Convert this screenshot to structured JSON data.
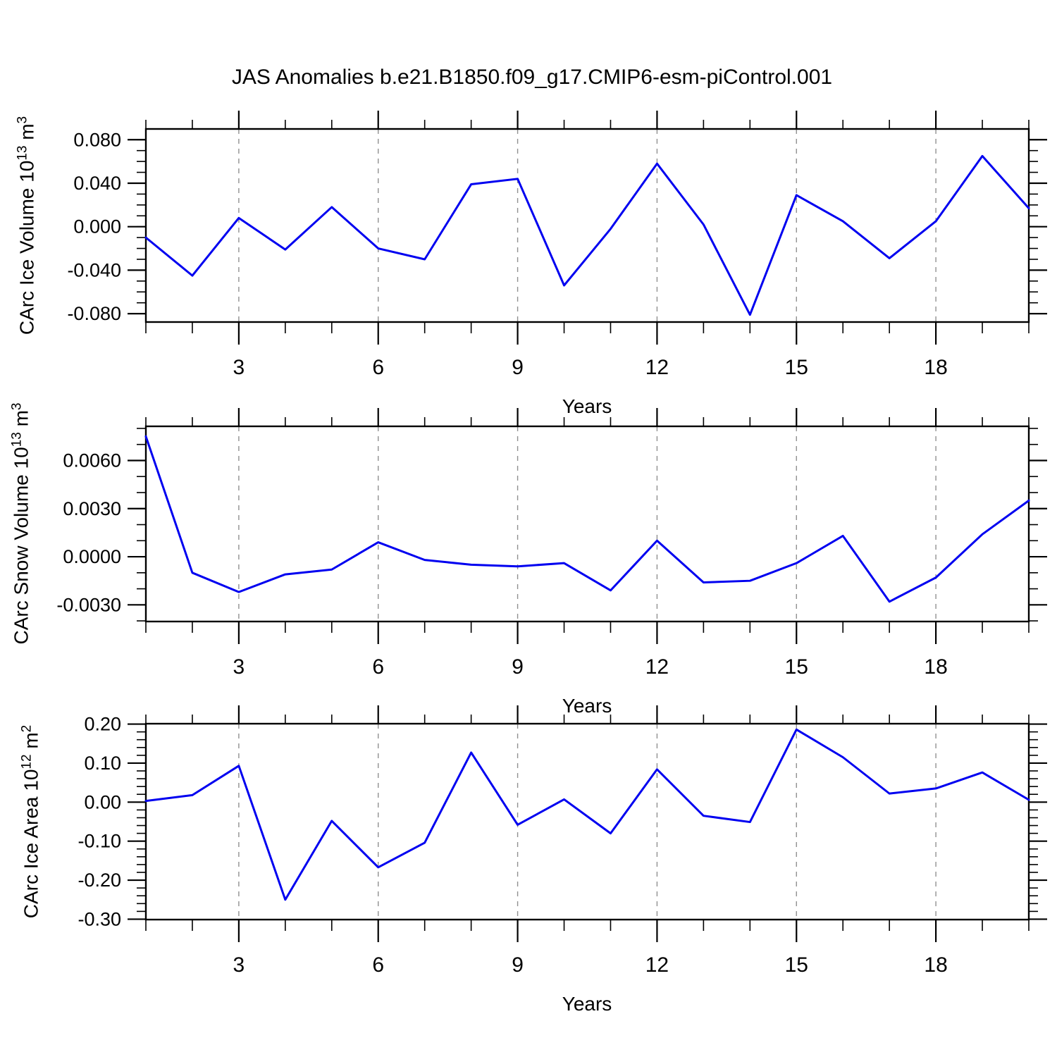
{
  "title": "JAS Anomalies b.e21.B1850.f09_g17.CMIP6-esm-piControl.001",
  "colors": {
    "line": "#0000f0",
    "grid": "#909090",
    "axis": "#000000"
  },
  "chart_data": [
    {
      "id": "ice-volume",
      "type": "line",
      "ylabel": "CArc Ice Volume 10^13 m^3",
      "ylabel_parts": {
        "base": "CArc Ice Volume 10",
        "sup1": "13",
        "mid": " m",
        "sup2": "3"
      },
      "xlabel": "Years",
      "x": [
        1,
        2,
        3,
        4,
        5,
        6,
        7,
        8,
        9,
        10,
        11,
        12,
        13,
        14,
        15,
        16,
        17,
        18,
        19,
        20
      ],
      "values": [
        -0.01,
        -0.045,
        0.008,
        -0.021,
        0.018,
        -0.02,
        -0.03,
        0.039,
        0.044,
        -0.054,
        -0.002,
        0.058,
        0.002,
        -0.081,
        0.029,
        0.005,
        -0.029,
        0.005,
        0.065,
        0.017
      ],
      "xlim": [
        1,
        20
      ],
      "ylim": [
        -0.0877,
        0.0899
      ],
      "xtick_major": [
        3,
        6,
        9,
        12,
        15,
        18
      ],
      "xtick_labels": [
        "3",
        "6",
        "9",
        "12",
        "15",
        "18"
      ],
      "ytick_values": [
        0.08,
        0.04,
        0.0,
        -0.04,
        -0.08
      ],
      "ytick_labels": [
        "0.080",
        "0.040",
        "0.000",
        "-0.040",
        "-0.080"
      ],
      "ytick_minor_step": 0.01,
      "grid": "dashed-vertical-at-major-xticks",
      "legend": "none"
    },
    {
      "id": "snow-volume",
      "type": "line",
      "ylabel": "CArc Snow Volume 10^13 m^3",
      "ylabel_parts": {
        "base": "CArc Snow Volume 10",
        "sup1": "13",
        "mid": " m",
        "sup2": "3"
      },
      "xlabel": "Years",
      "x": [
        1,
        2,
        3,
        4,
        5,
        6,
        7,
        8,
        9,
        10,
        11,
        12,
        13,
        14,
        15,
        16,
        17,
        18,
        19,
        20
      ],
      "values": [
        0.0075,
        -0.001,
        -0.0022,
        -0.0011,
        -0.0008,
        0.0009,
        -0.0002,
        -0.0005,
        -0.0006,
        -0.0004,
        -0.0021,
        0.001,
        -0.0016,
        -0.0015,
        -0.0004,
        0.0013,
        -0.0028,
        -0.0013,
        0.0014,
        0.0035
      ],
      "xlim": [
        1,
        20
      ],
      "ylim": [
        -0.00404,
        0.00813
      ],
      "xtick_major": [
        3,
        6,
        9,
        12,
        15,
        18
      ],
      "xtick_labels": [
        "3",
        "6",
        "9",
        "12",
        "15",
        "18"
      ],
      "ytick_values": [
        0.006,
        0.003,
        0.0,
        -0.003
      ],
      "ytick_labels": [
        "0.0060",
        "0.0030",
        "0.0000",
        "-0.0030"
      ],
      "ytick_minor_step": 0.001,
      "grid": "dashed-vertical-at-major-xticks",
      "legend": "none"
    },
    {
      "id": "ice-area",
      "type": "line",
      "ylabel": "CArc Ice Area 10^12 m^2",
      "ylabel_parts": {
        "base": "CArc Ice Area 10",
        "sup1": "12",
        "mid": " m",
        "sup2": "2"
      },
      "xlabel": "Years",
      "x": [
        1,
        2,
        3,
        4,
        5,
        6,
        7,
        8,
        9,
        10,
        11,
        12,
        13,
        14,
        15,
        16,
        17,
        18,
        19,
        20
      ],
      "values": [
        0.003,
        0.018,
        0.093,
        -0.25,
        -0.048,
        -0.167,
        -0.104,
        0.127,
        -0.058,
        0.007,
        -0.08,
        0.084,
        -0.035,
        -0.051,
        0.186,
        0.115,
        0.022,
        0.035,
        0.076,
        0.006
      ],
      "xlim": [
        1,
        20
      ],
      "ylim": [
        -0.301,
        0.201
      ],
      "xtick_major": [
        3,
        6,
        9,
        12,
        15,
        18
      ],
      "xtick_labels": [
        "3",
        "6",
        "9",
        "12",
        "15",
        "18"
      ],
      "ytick_values": [
        0.2,
        0.1,
        0.0,
        -0.1,
        -0.2,
        -0.3
      ],
      "ytick_labels": [
        "0.20",
        "0.10",
        "0.00",
        "-0.10",
        "-0.20",
        "-0.30"
      ],
      "ytick_minor_step": 0.02,
      "grid": "dashed-vertical-at-major-xticks",
      "legend": "none"
    }
  ]
}
